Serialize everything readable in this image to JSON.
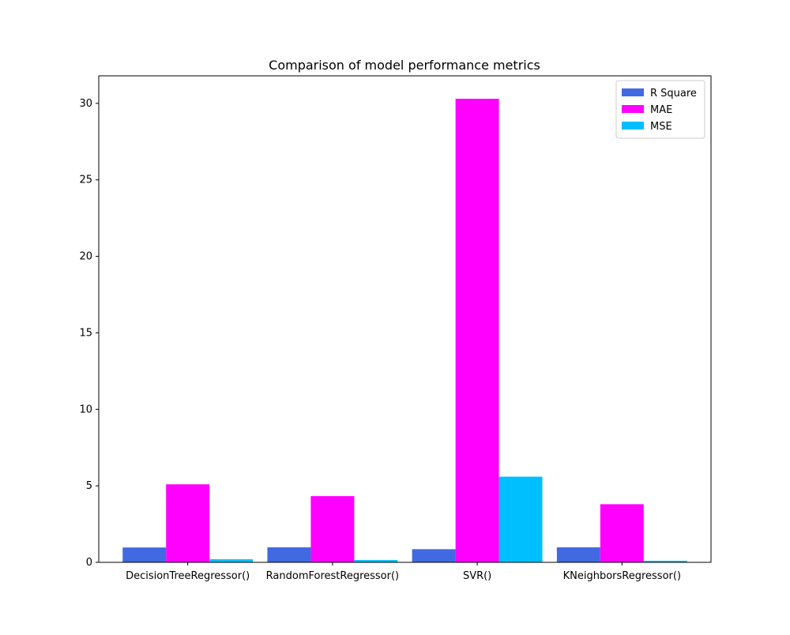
{
  "chart_data": {
    "type": "bar",
    "title": "Comparison of model performance metrics",
    "xlabel": "",
    "ylabel": "",
    "categories": [
      "DecisionTreeRegressor()",
      "RandomForestRegressor()",
      "SVR()",
      "KNeighborsRegressor()"
    ],
    "series": [
      {
        "name": "R Square",
        "color": "#4169e1",
        "values": [
          0.97,
          0.98,
          0.86,
          0.98
        ]
      },
      {
        "name": "MAE",
        "color": "#ff00ff",
        "values": [
          5.1,
          4.33,
          30.3,
          3.8
        ]
      },
      {
        "name": "MSE",
        "color": "#00bfff",
        "values": [
          0.2,
          0.15,
          5.6,
          0.1
        ]
      }
    ],
    "ylim": [
      0,
      31.8
    ],
    "yticks": [
      0,
      5,
      10,
      15,
      20,
      25,
      30
    ],
    "grid": false,
    "legend_position": "top-right"
  }
}
